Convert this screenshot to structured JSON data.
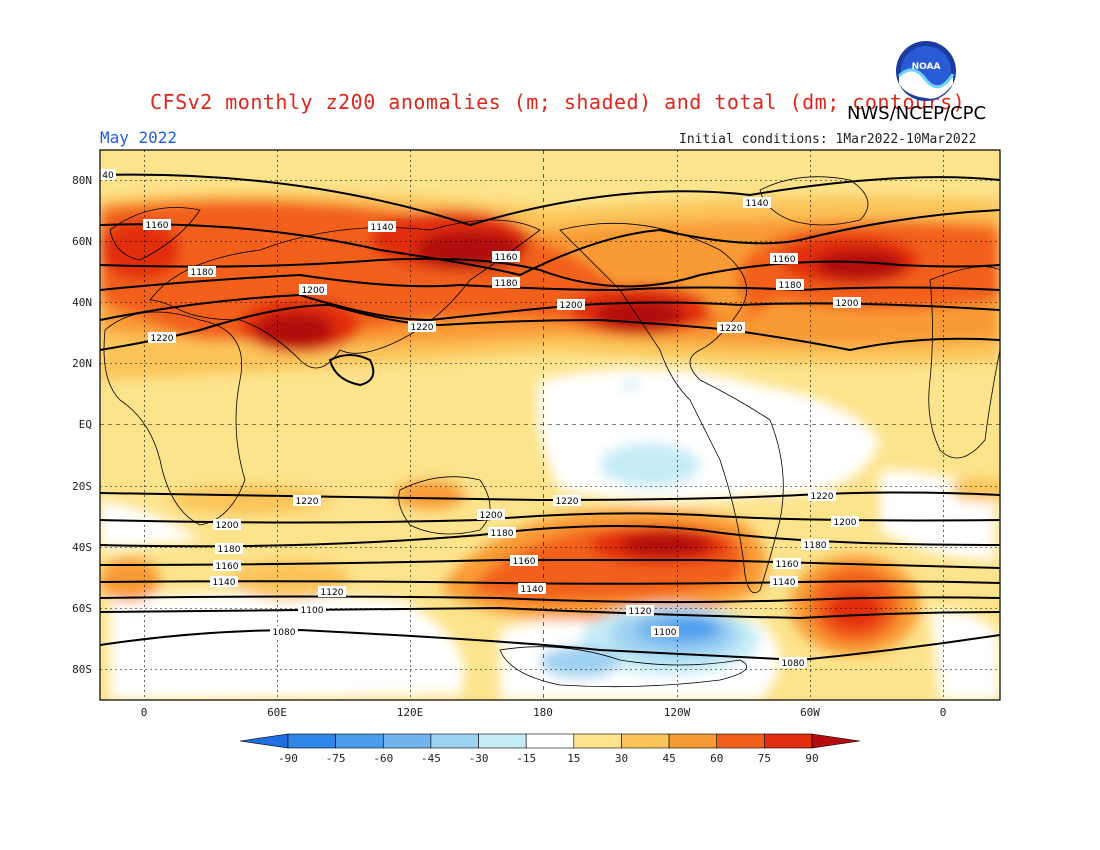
{
  "header": {
    "title": "CFSv2 monthly z200 anomalies (m; shaded) and total (dm; contours)",
    "agency": "NWS/NCEP/CPC",
    "month": "May 2022",
    "initial_conditions": "Initial conditions: 1Mar2022-10Mar2022",
    "logo_text": "NOAA"
  },
  "axes": {
    "lat_ticks": [
      "80N",
      "60N",
      "40N",
      "20N",
      "EQ",
      "20S",
      "40S",
      "60S",
      "80S"
    ],
    "lon_ticks": [
      "0",
      "60E",
      "120E",
      "180",
      "120W",
      "60W",
      "0"
    ]
  },
  "colorbar": {
    "ticks": [
      "-90",
      "-75",
      "-60",
      "-45",
      "-30",
      "-15",
      "15",
      "30",
      "45",
      "60",
      "75",
      "90"
    ],
    "colors": [
      "#1e6fe0",
      "#2f86e8",
      "#4a9ced",
      "#72b4f0",
      "#9ed2f2",
      "#c4ecf6",
      "#ffffff",
      "#fde38c",
      "#fbc45a",
      "#f99b34",
      "#f2611c",
      "#e22f10",
      "#b30d0d"
    ]
  },
  "contour_labels": [
    {
      "text": "40"
    },
    {
      "text": "1160"
    },
    {
      "text": "1140"
    },
    {
      "text": "1140"
    },
    {
      "text": "1180"
    },
    {
      "text": "1160"
    },
    {
      "text": "1160"
    },
    {
      "text": "1200"
    },
    {
      "text": "1180"
    },
    {
      "text": "1180"
    },
    {
      "text": "1200"
    },
    {
      "text": "1200"
    },
    {
      "text": "1220"
    },
    {
      "text": "1220"
    },
    {
      "text": "1220"
    },
    {
      "text": "1220"
    },
    {
      "text": "1220"
    },
    {
      "text": "1220"
    },
    {
      "text": "1200"
    },
    {
      "text": "1200"
    },
    {
      "text": "1200"
    },
    {
      "text": "1180"
    },
    {
      "text": "1180"
    },
    {
      "text": "1180"
    },
    {
      "text": "1160"
    },
    {
      "text": "1160"
    },
    {
      "text": "1160"
    },
    {
      "text": "1140"
    },
    {
      "text": "1140"
    },
    {
      "text": "1140"
    },
    {
      "text": "1120"
    },
    {
      "text": "1120"
    },
    {
      "text": "1100"
    },
    {
      "text": "1100"
    },
    {
      "text": "1080"
    },
    {
      "text": "1080"
    }
  ]
}
